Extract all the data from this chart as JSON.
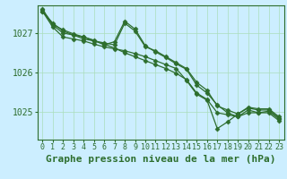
{
  "background_color": "#cceeff",
  "plot_bg_color": "#cceeff",
  "grid_color": "#aaddbb",
  "line_color": "#2d6e2d",
  "marker_color": "#2d6e2d",
  "xlabel": "Graphe pression niveau de la mer (hPa)",
  "ylim": [
    1024.3,
    1027.7
  ],
  "xlim": [
    -0.5,
    23.5
  ],
  "yticks": [
    1025,
    1026,
    1027
  ],
  "xticks": [
    0,
    1,
    2,
    3,
    4,
    5,
    6,
    7,
    8,
    9,
    10,
    11,
    12,
    13,
    14,
    15,
    16,
    17,
    18,
    19,
    20,
    21,
    22,
    23
  ],
  "series": [
    [
      1027.55,
      1027.25,
      1027.05,
      1026.95,
      1026.85,
      1026.8,
      1026.75,
      1026.7,
      1027.25,
      1027.05,
      1026.65,
      1026.55,
      1026.4,
      1026.25,
      1026.1,
      1025.75,
      1025.55,
      1025.15,
      1025.05,
      1024.95,
      1025.1,
      1025.05,
      1025.05,
      1024.85
    ],
    [
      1027.55,
      1027.15,
      1026.9,
      1026.85,
      1026.8,
      1026.72,
      1026.65,
      1026.6,
      1026.55,
      1026.48,
      1026.4,
      1026.3,
      1026.2,
      1026.1,
      1025.8,
      1025.45,
      1025.3,
      1024.58,
      1024.75,
      1024.95,
      1025.12,
      1025.08,
      1025.08,
      1024.88
    ],
    [
      1027.58,
      1027.2,
      1027.0,
      1026.95,
      1026.9,
      1026.82,
      1026.7,
      1026.78,
      1027.3,
      1027.1,
      1026.68,
      1026.52,
      1026.38,
      1026.22,
      1026.08,
      1025.68,
      1025.48,
      1025.18,
      1024.98,
      1024.88,
      1025.05,
      1024.98,
      1025.02,
      1024.82
    ],
    [
      1027.6,
      1027.22,
      1027.08,
      1026.98,
      1026.9,
      1026.8,
      1026.72,
      1026.62,
      1026.5,
      1026.4,
      1026.3,
      1026.2,
      1026.1,
      1025.98,
      1025.82,
      1025.48,
      1025.32,
      1024.98,
      1024.93,
      1024.88,
      1024.98,
      1024.98,
      1024.98,
      1024.78
    ]
  ],
  "xlabel_fontsize": 8,
  "tick_fontsize": 6,
  "linewidth": 0.9,
  "markersize": 2.5
}
